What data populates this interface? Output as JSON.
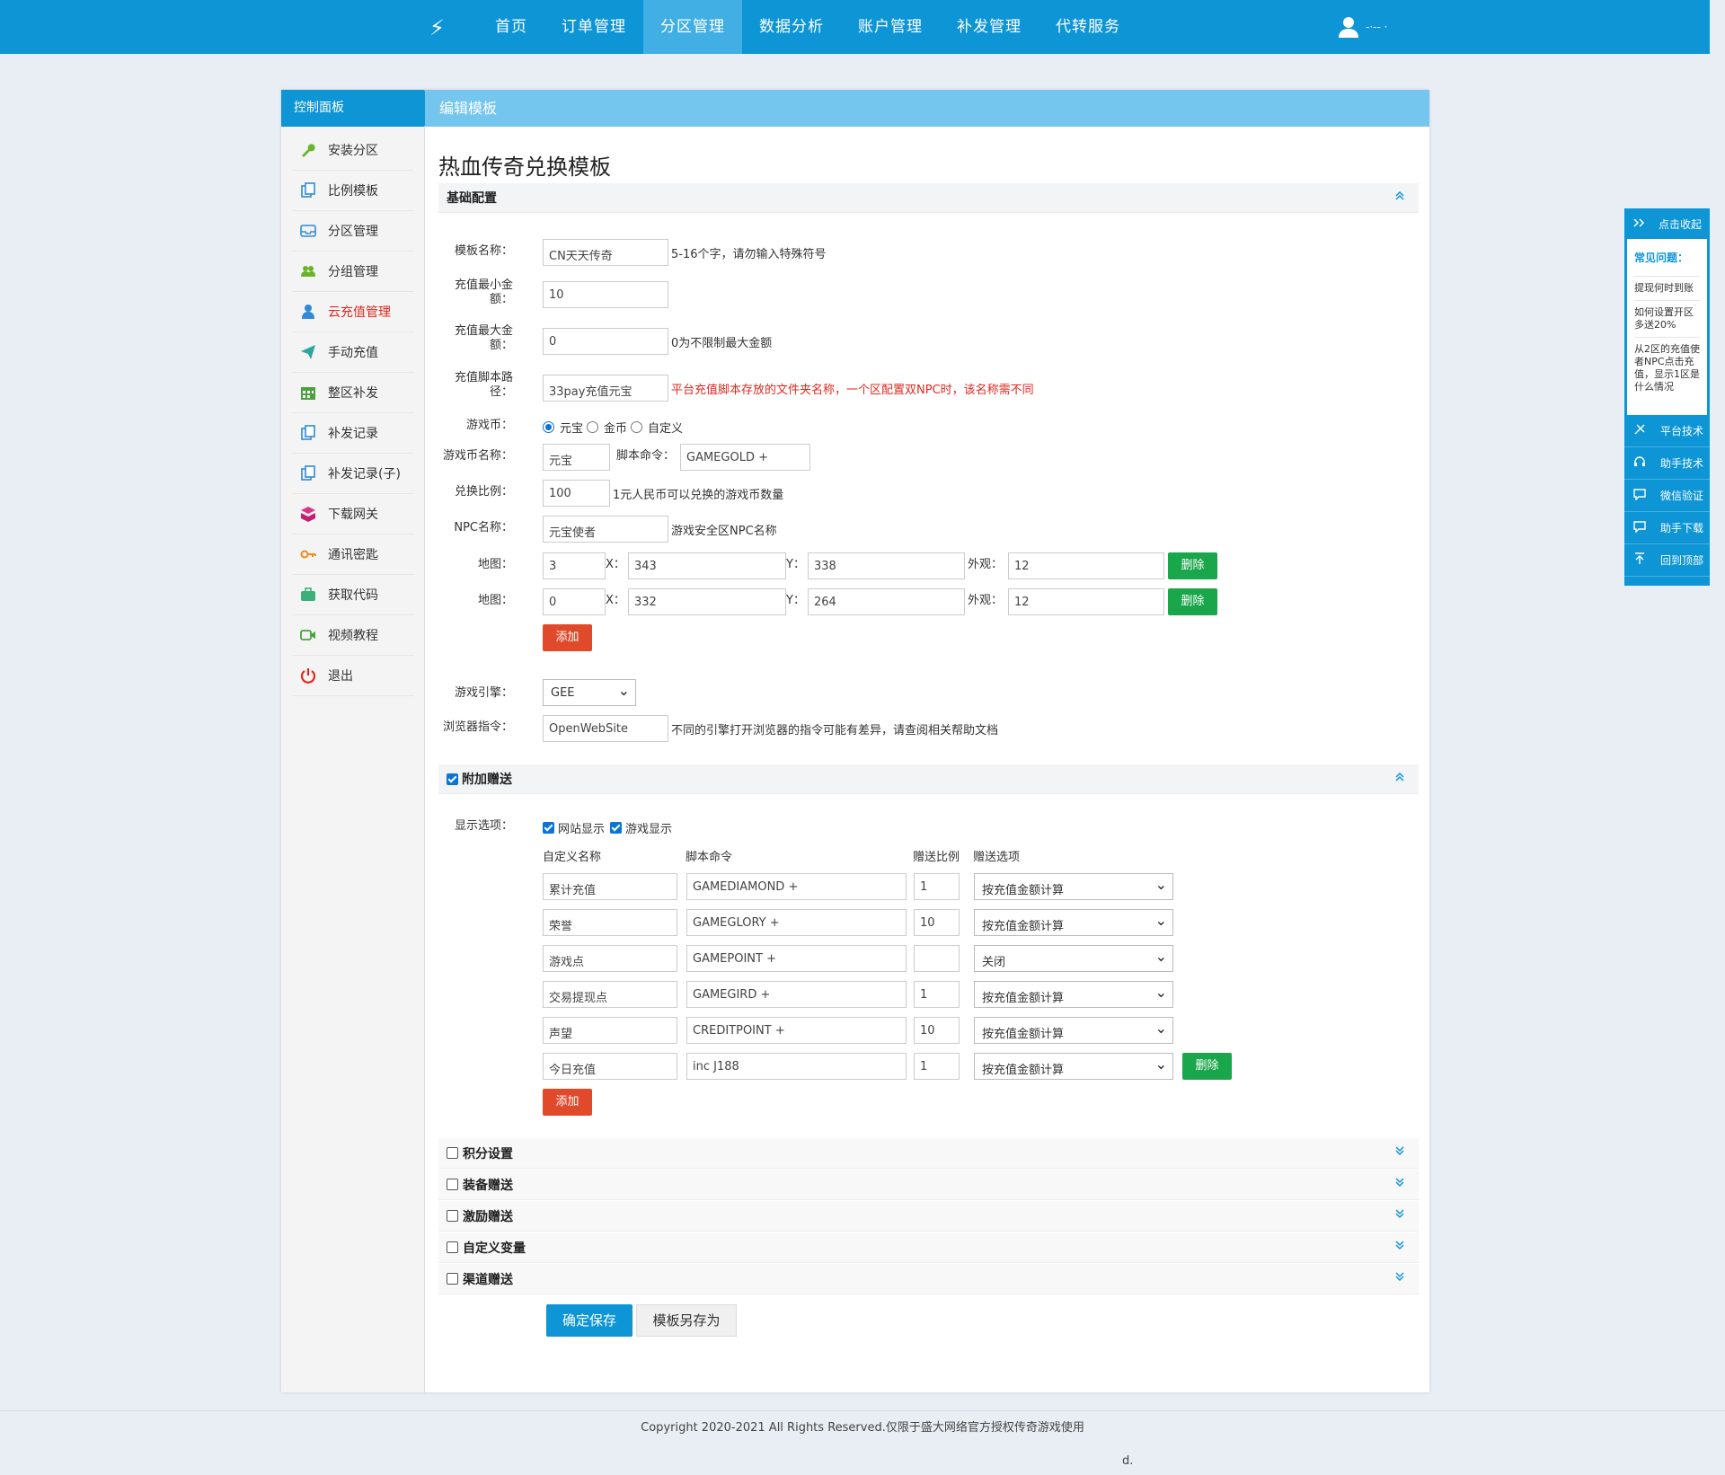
{
  "header": {
    "logo_glyph": "⚡",
    "nav": [
      {
        "label": "首页"
      },
      {
        "label": "订单管理"
      },
      {
        "label": "分区管理"
      },
      {
        "label": "数据分析"
      },
      {
        "label": "账户管理"
      },
      {
        "label": "补发管理"
      },
      {
        "label": "代转服务"
      }
    ],
    "active_nav": "分区管理",
    "user_text": "-·-- ·"
  },
  "sidebar": {
    "title": "控制面板",
    "items": [
      {
        "label": "安装分区",
        "icon": "wrench-icon"
      },
      {
        "label": "比例模板",
        "icon": "copy-icon"
      },
      {
        "label": "分区管理",
        "icon": "inbox-icon"
      },
      {
        "label": "分组管理",
        "icon": "group-icon"
      },
      {
        "label": "云充值管理",
        "icon": "user-icon"
      },
      {
        "label": "手动充值",
        "icon": "send-icon"
      },
      {
        "label": "整区补发",
        "icon": "calendar-icon"
      },
      {
        "label": "补发记录",
        "icon": "copy-icon"
      },
      {
        "label": "补发记录(子)",
        "icon": "copy-icon"
      },
      {
        "label": "下载网关",
        "icon": "download-box-icon"
      },
      {
        "label": "通讯密匙",
        "icon": "key-icon"
      },
      {
        "label": "获取代码",
        "icon": "briefcase-icon"
      },
      {
        "label": "视频教程",
        "icon": "video-icon"
      },
      {
        "label": "退出",
        "icon": "power-icon"
      }
    ],
    "active_item": "云充值管理"
  },
  "content": {
    "header": "编辑模板",
    "title": "热血传奇兑换模板",
    "basic": {
      "section_title": "基础配置",
      "template_name_label": "模板名称：",
      "template_name": "CN天天传奇",
      "template_name_hint": "5-16个字，请勿输入特殊符号",
      "min_amount_label_1": "充值最小金",
      "min_amount_label_2": "额：",
      "min_amount": "10",
      "max_amount_label_1": "充值最大金",
      "max_amount_label_2": "额：",
      "max_amount": "0",
      "max_amount_hint": "0为不限制最大金额",
      "script_path_label_1": "充值脚本路",
      "script_path_label_2": "径：",
      "script_path": "33pay充值元宝",
      "script_path_hint": "平台充值脚本存放的文件夹名称，一个区配置双NPC时，该名称需不同",
      "currency_label": "游戏币：",
      "currency_options": [
        "元宝",
        "金币",
        "自定义"
      ],
      "currency_selected": "元宝",
      "currency_name_label": "游戏币名称：",
      "currency_name": "元宝",
      "script_cmd_label": "脚本命令：",
      "script_cmd": "GAMEGOLD +",
      "ratio_label": "兑换比例：",
      "ratio": "100",
      "ratio_hint": "1元人民币可以兑换的游戏币数量",
      "npc_label": "NPC名称：",
      "npc": "元宝使者",
      "npc_hint": "游戏安全区NPC名称",
      "map_label": "地图：",
      "x_label": "X：",
      "y_label": "Y：",
      "look_label": "外观：",
      "maps": [
        {
          "map": "3",
          "x": "343",
          "y": "338",
          "look": "12"
        },
        {
          "map": "0",
          "x": "332",
          "y": "264",
          "look": "12"
        }
      ],
      "delete_label": "删除",
      "add_label": "添加",
      "engine_label": "游戏引擎：",
      "engine": "GEE",
      "browser_label": "浏览器指令：",
      "browser_cmd": "OpenWebSite",
      "browser_hint": "不同的引擎打开浏览器的指令可能有差异，请查阅相关帮助文档"
    },
    "bonus": {
      "section_title": "附加赠送",
      "display_label": "显示选项：",
      "display_web": "网站显示",
      "display_game": "游戏显示",
      "col_name": "自定义名称",
      "col_cmd": "脚本命令",
      "col_ratio": "赠送比例",
      "col_option": "赠送选项",
      "rows": [
        {
          "name": "累计充值",
          "cmd": "GAMEDIAMOND +",
          "ratio": "1",
          "option": "按充值金额计算"
        },
        {
          "name": "荣誉",
          "cmd": "GAMEGLORY +",
          "ratio": "10",
          "option": "按充值金额计算"
        },
        {
          "name": "游戏点",
          "cmd": "GAMEPOINT +",
          "ratio": "",
          "option": "关闭"
        },
        {
          "name": "交易提现点",
          "cmd": "GAMEGIRD +",
          "ratio": "1",
          "option": "按充值金额计算"
        },
        {
          "name": "声望",
          "cmd": "CREDITPOINT +",
          "ratio": "10",
          "option": "按充值金额计算"
        },
        {
          "name": "今日充值",
          "cmd": "inc J188",
          "ratio": "1",
          "option": "按充值金额计算"
        }
      ],
      "delete_label": "删除",
      "add_label": "添加"
    },
    "collapsed_sections": [
      "积分设置",
      "装备赠送",
      "激励赠送",
      "自定义变量",
      "渠道赠送"
    ],
    "save_label": "确定保存",
    "save_as_label": "模板另存为"
  },
  "float_panel": {
    "collapse_label": "点击收起",
    "faq_title": "常见问题：",
    "faq": [
      "提现何时到账",
      "如何设置开区多送20%",
      "从2区的充值使者NPC点击充值，显示1区是什么情况"
    ],
    "links": [
      "平台技术",
      "助手技术",
      "微信验证",
      "助手下载",
      "回到顶部"
    ]
  },
  "footer": {
    "copyright": "Copyright 2020-2021 All Rights Reserved.仅限于盛大网络官方授权传奇游戏使用",
    "extra": "d."
  },
  "colors": {
    "primary": "#0d95d6",
    "light": "#74c6ef",
    "danger": "#e04a2b",
    "success": "#1aa64a",
    "alert_text": "#e0281e"
  }
}
